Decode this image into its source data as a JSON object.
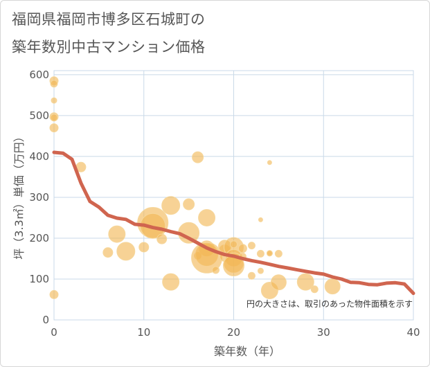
{
  "title_lines": [
    "福岡県福岡市博多区石城町の",
    "築年数別中古マンション価格"
  ],
  "chart_data": {
    "type": "scatter",
    "title": "福岡県福岡市博多区石城町の築年数別中古マンション価格",
    "xlabel": "築年数（年）",
    "ylabel": "坪（3.3㎡）単価（万円）",
    "xlim": [
      0,
      40
    ],
    "ylim": [
      0,
      610
    ],
    "x_ticks": [
      0,
      10,
      20,
      30,
      40
    ],
    "y_ticks": [
      0,
      100,
      200,
      300,
      400,
      500,
      600
    ],
    "grid": true,
    "note": "円の大きさは、取引のあった物件面積を示す",
    "colors": {
      "bubble": "#f2b654",
      "trend": "#d0654f",
      "grid": "#c9d9e8"
    },
    "bubbles": {
      "x": [
        0,
        0,
        0,
        0,
        0,
        0,
        0,
        3,
        6,
        7,
        8,
        10,
        11,
        11,
        12,
        13,
        13,
        15,
        15,
        16,
        16,
        17,
        17,
        17,
        17,
        18,
        19,
        19,
        19,
        20,
        20,
        20,
        20,
        20,
        21,
        21,
        22,
        22,
        23,
        23,
        23,
        24,
        24,
        24,
        24,
        25,
        25,
        28,
        29,
        31
      ],
      "y": [
        585,
        578,
        537,
        497,
        495,
        470,
        62,
        374,
        165,
        210,
        168,
        178,
        238,
        230,
        198,
        280,
        93,
        283,
        213,
        398,
        157,
        250,
        175,
        160,
        152,
        122,
        170,
        155,
        180,
        178,
        152,
        140,
        133,
        185,
        155,
        175,
        182,
        108,
        245,
        162,
        120,
        385,
        163,
        163,
        72,
        162,
        92,
        93,
        75,
        82
      ],
      "size": [
        6,
        5,
        4,
        6,
        5,
        6,
        6,
        7,
        7,
        12,
        13,
        7,
        22,
        18,
        7,
        13,
        12,
        8,
        15,
        8,
        5,
        12,
        11,
        16,
        22,
        5,
        8,
        7,
        9,
        14,
        12,
        14,
        15,
        5,
        5,
        6,
        5,
        5,
        3,
        5,
        4,
        3,
        4,
        4,
        12,
        5,
        11,
        12,
        5,
        11
      ]
    },
    "trend": {
      "x": [
        0,
        1,
        2,
        3,
        4,
        5,
        6,
        7,
        8,
        9,
        10,
        11,
        12,
        13,
        14,
        15,
        16,
        17,
        18,
        19,
        20,
        21,
        22,
        23,
        24,
        25,
        26,
        27,
        28,
        29,
        30,
        31,
        32,
        33,
        34,
        35,
        36,
        37,
        38,
        39,
        40
      ],
      "y": [
        410,
        408,
        393,
        335,
        290,
        276,
        256,
        249,
        246,
        234,
        232,
        226,
        222,
        216,
        211,
        200,
        188,
        176,
        167,
        160,
        156,
        150,
        145,
        141,
        136,
        131,
        127,
        123,
        119,
        115,
        112,
        105,
        100,
        92,
        91,
        87,
        86,
        90,
        91,
        88,
        65
      ]
    }
  }
}
